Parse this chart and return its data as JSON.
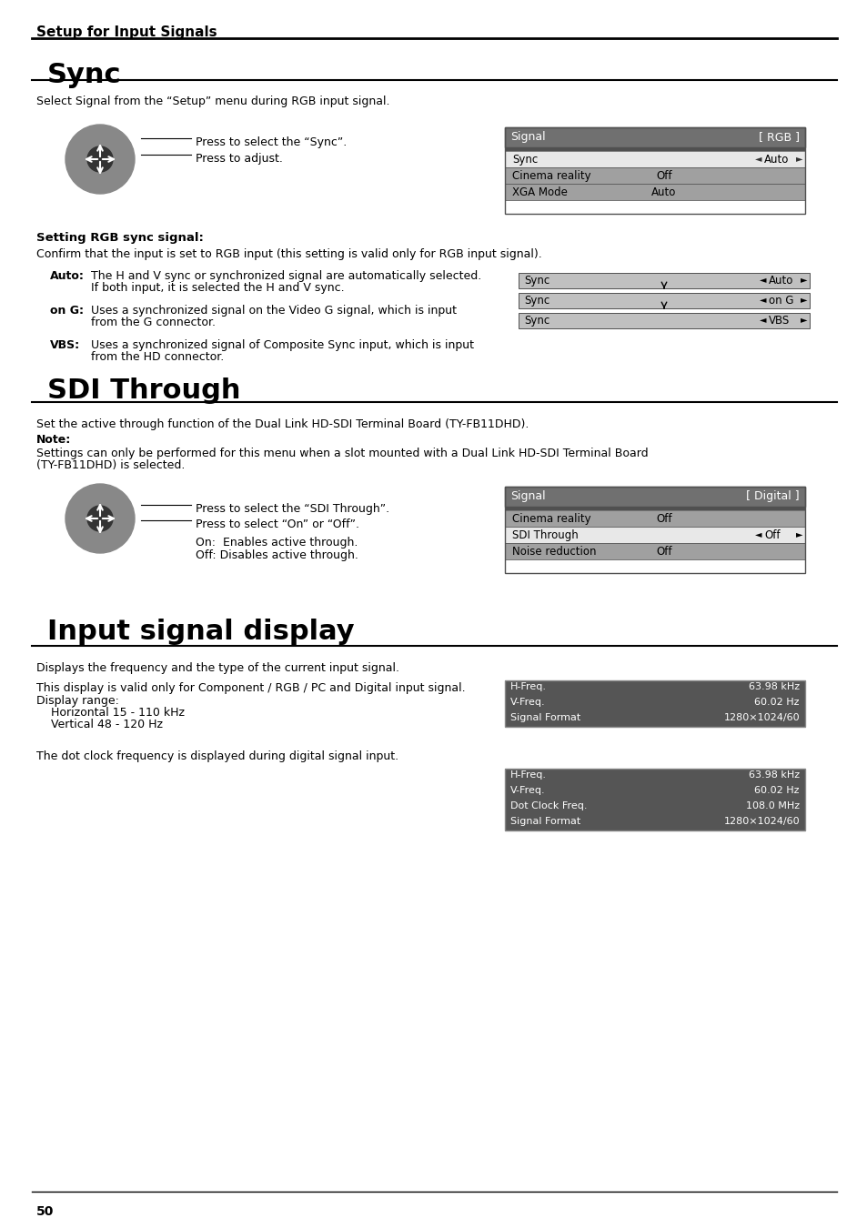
{
  "page_header": "Setup for Input Signals",
  "section1_title": "Sync",
  "section1_intro": "Select Signal from the “Setup” menu during RGB input signal.",
  "section1_arrow1": "Press to select the “Sync”.",
  "section1_arrow2": "Press to adjust.",
  "rgb_menu": {
    "header": "Signal",
    "header_right": "[ RGB ]",
    "rows": [
      {
        "label": "Sync",
        "value": "Auto",
        "highlighted": true
      },
      {
        "label": "Cinema reality",
        "value": "Off",
        "highlighted": false
      },
      {
        "label": "XGA Mode",
        "value": "Auto",
        "highlighted": false
      }
    ]
  },
  "subsection_title": "Setting RGB sync signal:",
  "subsection_intro": "Confirm that the input is set to RGB input (this setting is valid only for RGB input signal).",
  "sync_items": [
    {
      "label": "Auto:",
      "desc": "The H and V sync or synchronized signal are automatically selected.\n     If both input, it is selected the H and V sync."
    },
    {
      "label": "on G:",
      "desc": "Uses a synchronized signal on the Video G signal, which is input\n     from the G connector."
    },
    {
      "label": "VBS:",
      "desc": "Uses a synchronized signal of Composite Sync input, which is input\n     from the HD connector."
    }
  ],
  "sync_boxes": [
    {
      "label": "Sync",
      "value": "Auto"
    },
    {
      "label": "Sync",
      "value": "on G"
    },
    {
      "label": "Sync",
      "value": "VBS"
    }
  ],
  "section2_title": "SDI Through",
  "section2_intro1": "Set the active through function of the Dual Link HD-SDI Terminal Board (TY-FB11DHD).",
  "section2_note_label": "Note:",
  "section2_note": "Settings can only be performed for this menu when a slot mounted with a Dual Link HD-SDI Terminal Board\n(TY-FB11DHD) is selected.",
  "section2_arrow1": "Press to select the “SDI Through”.",
  "section2_arrow2": "Press to select “On” or “Off”.",
  "section2_on": "On:  Enables active through.",
  "section2_off": "Off: Disables active through.",
  "digital_menu": {
    "header": "Signal",
    "header_right": "[ Digital ]",
    "rows": [
      {
        "label": "Cinema reality",
        "value": "Off",
        "highlighted": false
      },
      {
        "label": "SDI Through",
        "value": "Off",
        "highlighted": true
      },
      {
        "label": "Noise reduction",
        "value": "Off",
        "highlighted": false
      }
    ]
  },
  "section3_title": "Input signal display",
  "section3_intro1": "Displays the frequency and the type of the current input signal.",
  "section3_intro2": "This display is valid only for Component / RGB / PC and Digital input signal.",
  "section3_range_label": "Display range:",
  "section3_range1": "    Horizontal 15 - 110 kHz",
  "section3_range2": "    Vertical 48 - 120 Hz",
  "section3_dot_clock": "The dot clock frequency is displayed during digital signal input.",
  "freq_box1": {
    "rows": [
      {
        "label": "H-Freq.",
        "value": "63.98",
        "unit": "kHz"
      },
      {
        "label": "V-Freq.",
        "value": "60.02",
        "unit": "Hz"
      },
      {
        "label": "Signal Format",
        "value": "1280×1024/60",
        "unit": ""
      }
    ]
  },
  "freq_box2": {
    "rows": [
      {
        "label": "H-Freq.",
        "value": "63.98",
        "unit": "kHz"
      },
      {
        "label": "V-Freq.",
        "value": "60.02",
        "unit": "Hz"
      },
      {
        "label": "Dot Clock Freq.",
        "value": "108.0",
        "unit": "MHz"
      },
      {
        "label": "Signal Format",
        "value": "1280×1024/60",
        "unit": ""
      }
    ]
  },
  "page_number": "50",
  "bg_color": "#ffffff",
  "text_color": "#000000",
  "menu_header_bg": "#808080",
  "menu_header_text": "#ffffff",
  "menu_row_highlight_bg": "#ffffff",
  "menu_row_normal_bg": "#c0c0c0",
  "menu_border": "#505050"
}
